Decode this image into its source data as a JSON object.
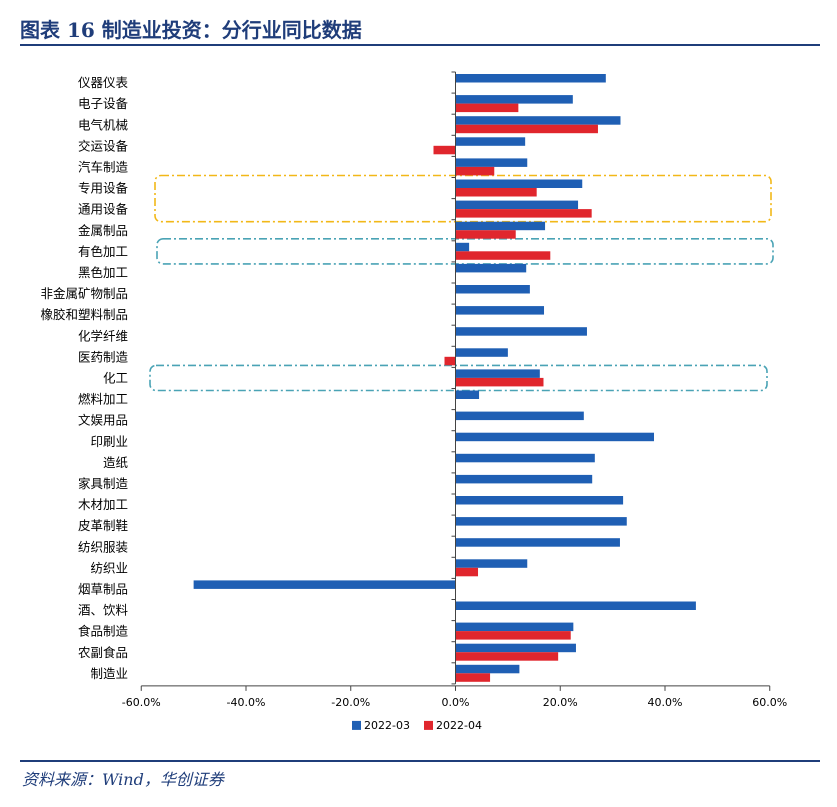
{
  "header": {
    "title": "图表 16   制造业投资：分行业同比数据"
  },
  "source": "资料来源：Wind，华创证券",
  "chart_data": {
    "type": "bar",
    "orientation": "horizontal",
    "categories": [
      "仪器仪表",
      "电子设备",
      "电气机械",
      "交运设备",
      "汽车制造",
      "专用设备",
      "通用设备",
      "金属制品",
      "有色加工",
      "黑色加工",
      "非金属矿物制品",
      "橡胶和塑料制品",
      "化学纤维",
      "医药制造",
      "化工",
      "燃料加工",
      "文娱用品",
      "印刷业",
      "造纸",
      "家具制造",
      "木材加工",
      "皮革制鞋",
      "纺织服装",
      "纺织业",
      "烟草制品",
      "酒、饮料",
      "食品制造",
      "农副食品",
      "制造业"
    ],
    "series": [
      {
        "name": "2022-03",
        "color": "#1f5fb4",
        "values": [
          28.7,
          22.4,
          31.5,
          13.3,
          13.7,
          24.2,
          23.4,
          17.1,
          2.6,
          13.5,
          14.2,
          16.9,
          25.1,
          10.0,
          16.1,
          4.5,
          24.5,
          37.9,
          26.6,
          26.1,
          32.0,
          32.7,
          31.4,
          13.7,
          -50.0,
          45.9,
          22.5,
          23.0,
          12.2
        ]
      },
      {
        "name": "2022-04",
        "color": "#e0262d",
        "values": [
          null,
          12.0,
          27.2,
          -4.2,
          7.4,
          15.5,
          26.0,
          11.5,
          18.1,
          null,
          null,
          null,
          null,
          -2.1,
          16.8,
          null,
          null,
          null,
          null,
          null,
          null,
          null,
          null,
          4.3,
          null,
          null,
          22.0,
          19.6,
          6.6
        ]
      }
    ],
    "x_ticks": [
      "-60.0%",
      "-40.0%",
      "-20.0%",
      "0.0%",
      "20.0%",
      "40.0%",
      "60.0%"
    ],
    "xlim": [
      -60,
      60
    ],
    "xlabel": "",
    "ylabel": "",
    "legend": [
      "2022-03",
      "2022-04"
    ],
    "legend_position": "bottom",
    "highlight_boxes": [
      {
        "categories": [
          "专用设备",
          "通用设备"
        ],
        "color": "#f2b818"
      },
      {
        "categories": [
          "有色加工"
        ],
        "color": "#4aa3b5"
      },
      {
        "categories": [
          "化工"
        ],
        "color": "#4aa3b5"
      }
    ]
  }
}
